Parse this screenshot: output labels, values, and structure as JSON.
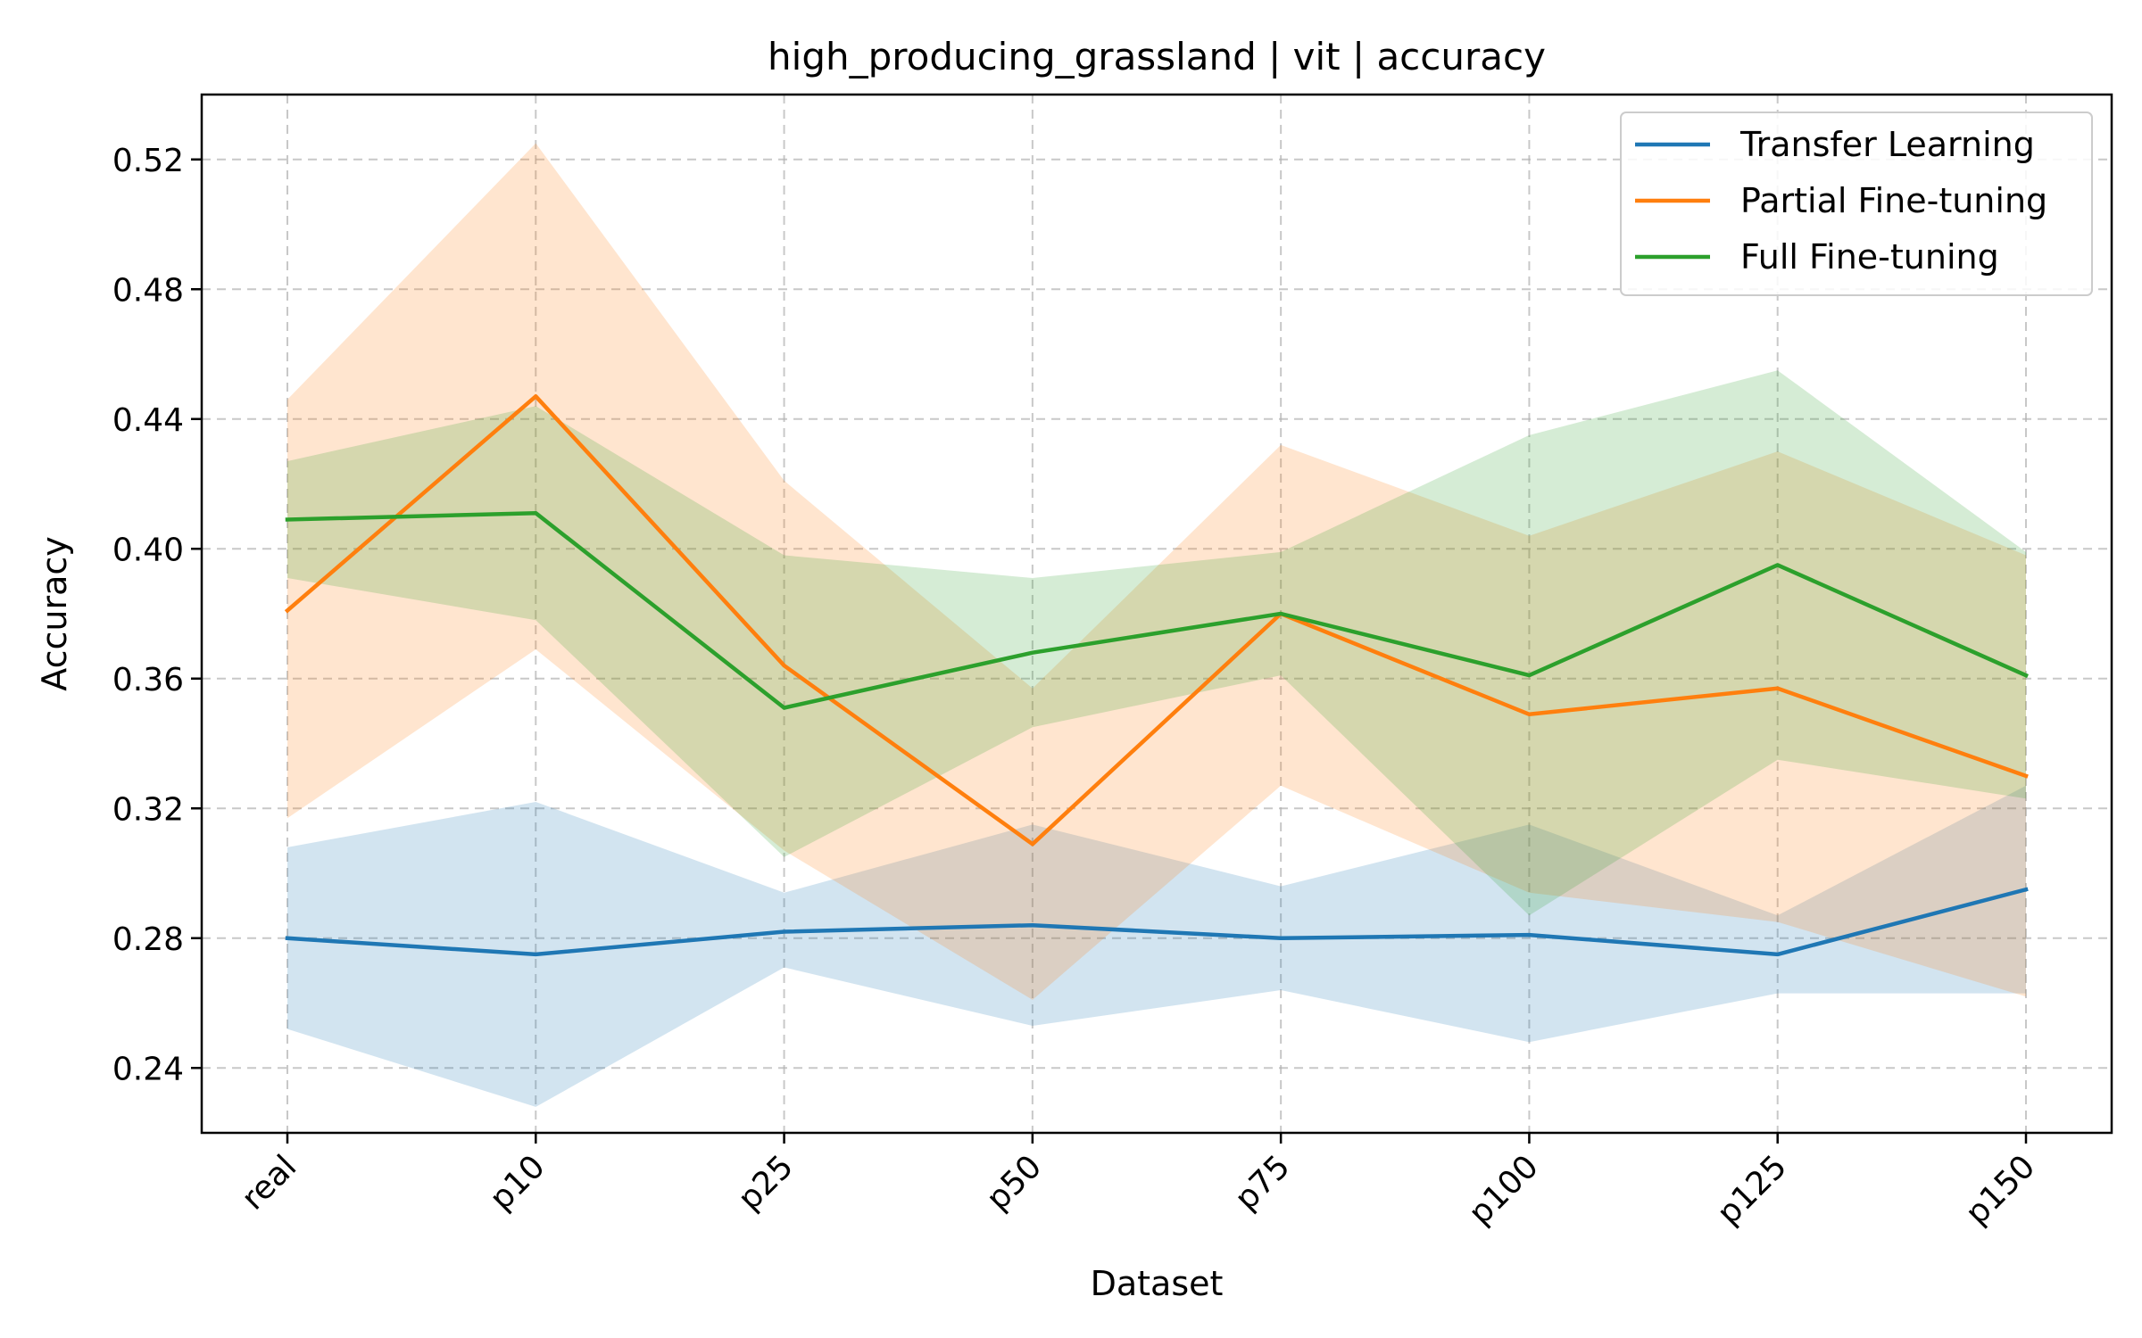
{
  "chart_data": {
    "type": "line",
    "title": "high_producing_grassland | vit | accuracy",
    "xlabel": "Dataset",
    "ylabel": "Accuracy",
    "categories": [
      "real",
      "p10",
      "p25",
      "p50",
      "p75",
      "p100",
      "p125",
      "p150"
    ],
    "ylim": [
      0.22,
      0.54
    ],
    "yticks": [
      0.24,
      0.28,
      0.32,
      0.36,
      0.4,
      0.44,
      0.48,
      0.52
    ],
    "ytick_labels": [
      "0.24",
      "0.28",
      "0.32",
      "0.36",
      "0.40",
      "0.44",
      "0.48",
      "0.52"
    ],
    "grid": true,
    "legend_position": "top-right",
    "series": [
      {
        "name": "Transfer Learning",
        "color": "#1f77b4",
        "values": [
          0.28,
          0.275,
          0.282,
          0.284,
          0.28,
          0.281,
          0.275,
          0.295
        ],
        "lower": [
          0.252,
          0.228,
          0.271,
          0.253,
          0.264,
          0.248,
          0.263,
          0.263
        ],
        "upper": [
          0.308,
          0.322,
          0.294,
          0.315,
          0.296,
          0.315,
          0.287,
          0.327
        ]
      },
      {
        "name": "Partial Fine-tuning",
        "color": "#ff7f0e",
        "values": [
          0.381,
          0.447,
          0.364,
          0.309,
          0.38,
          0.349,
          0.357,
          0.33
        ],
        "lower": [
          0.317,
          0.369,
          0.307,
          0.261,
          0.327,
          0.294,
          0.285,
          0.262
        ],
        "upper": [
          0.446,
          0.525,
          0.421,
          0.357,
          0.432,
          0.404,
          0.43,
          0.398
        ]
      },
      {
        "name": "Full Fine-tuning",
        "color": "#2ca02c",
        "values": [
          0.409,
          0.411,
          0.351,
          0.368,
          0.38,
          0.361,
          0.395,
          0.361
        ],
        "lower": [
          0.391,
          0.378,
          0.305,
          0.345,
          0.361,
          0.287,
          0.335,
          0.323
        ],
        "upper": [
          0.427,
          0.444,
          0.398,
          0.391,
          0.399,
          0.435,
          0.455,
          0.399
        ]
      }
    ]
  }
}
